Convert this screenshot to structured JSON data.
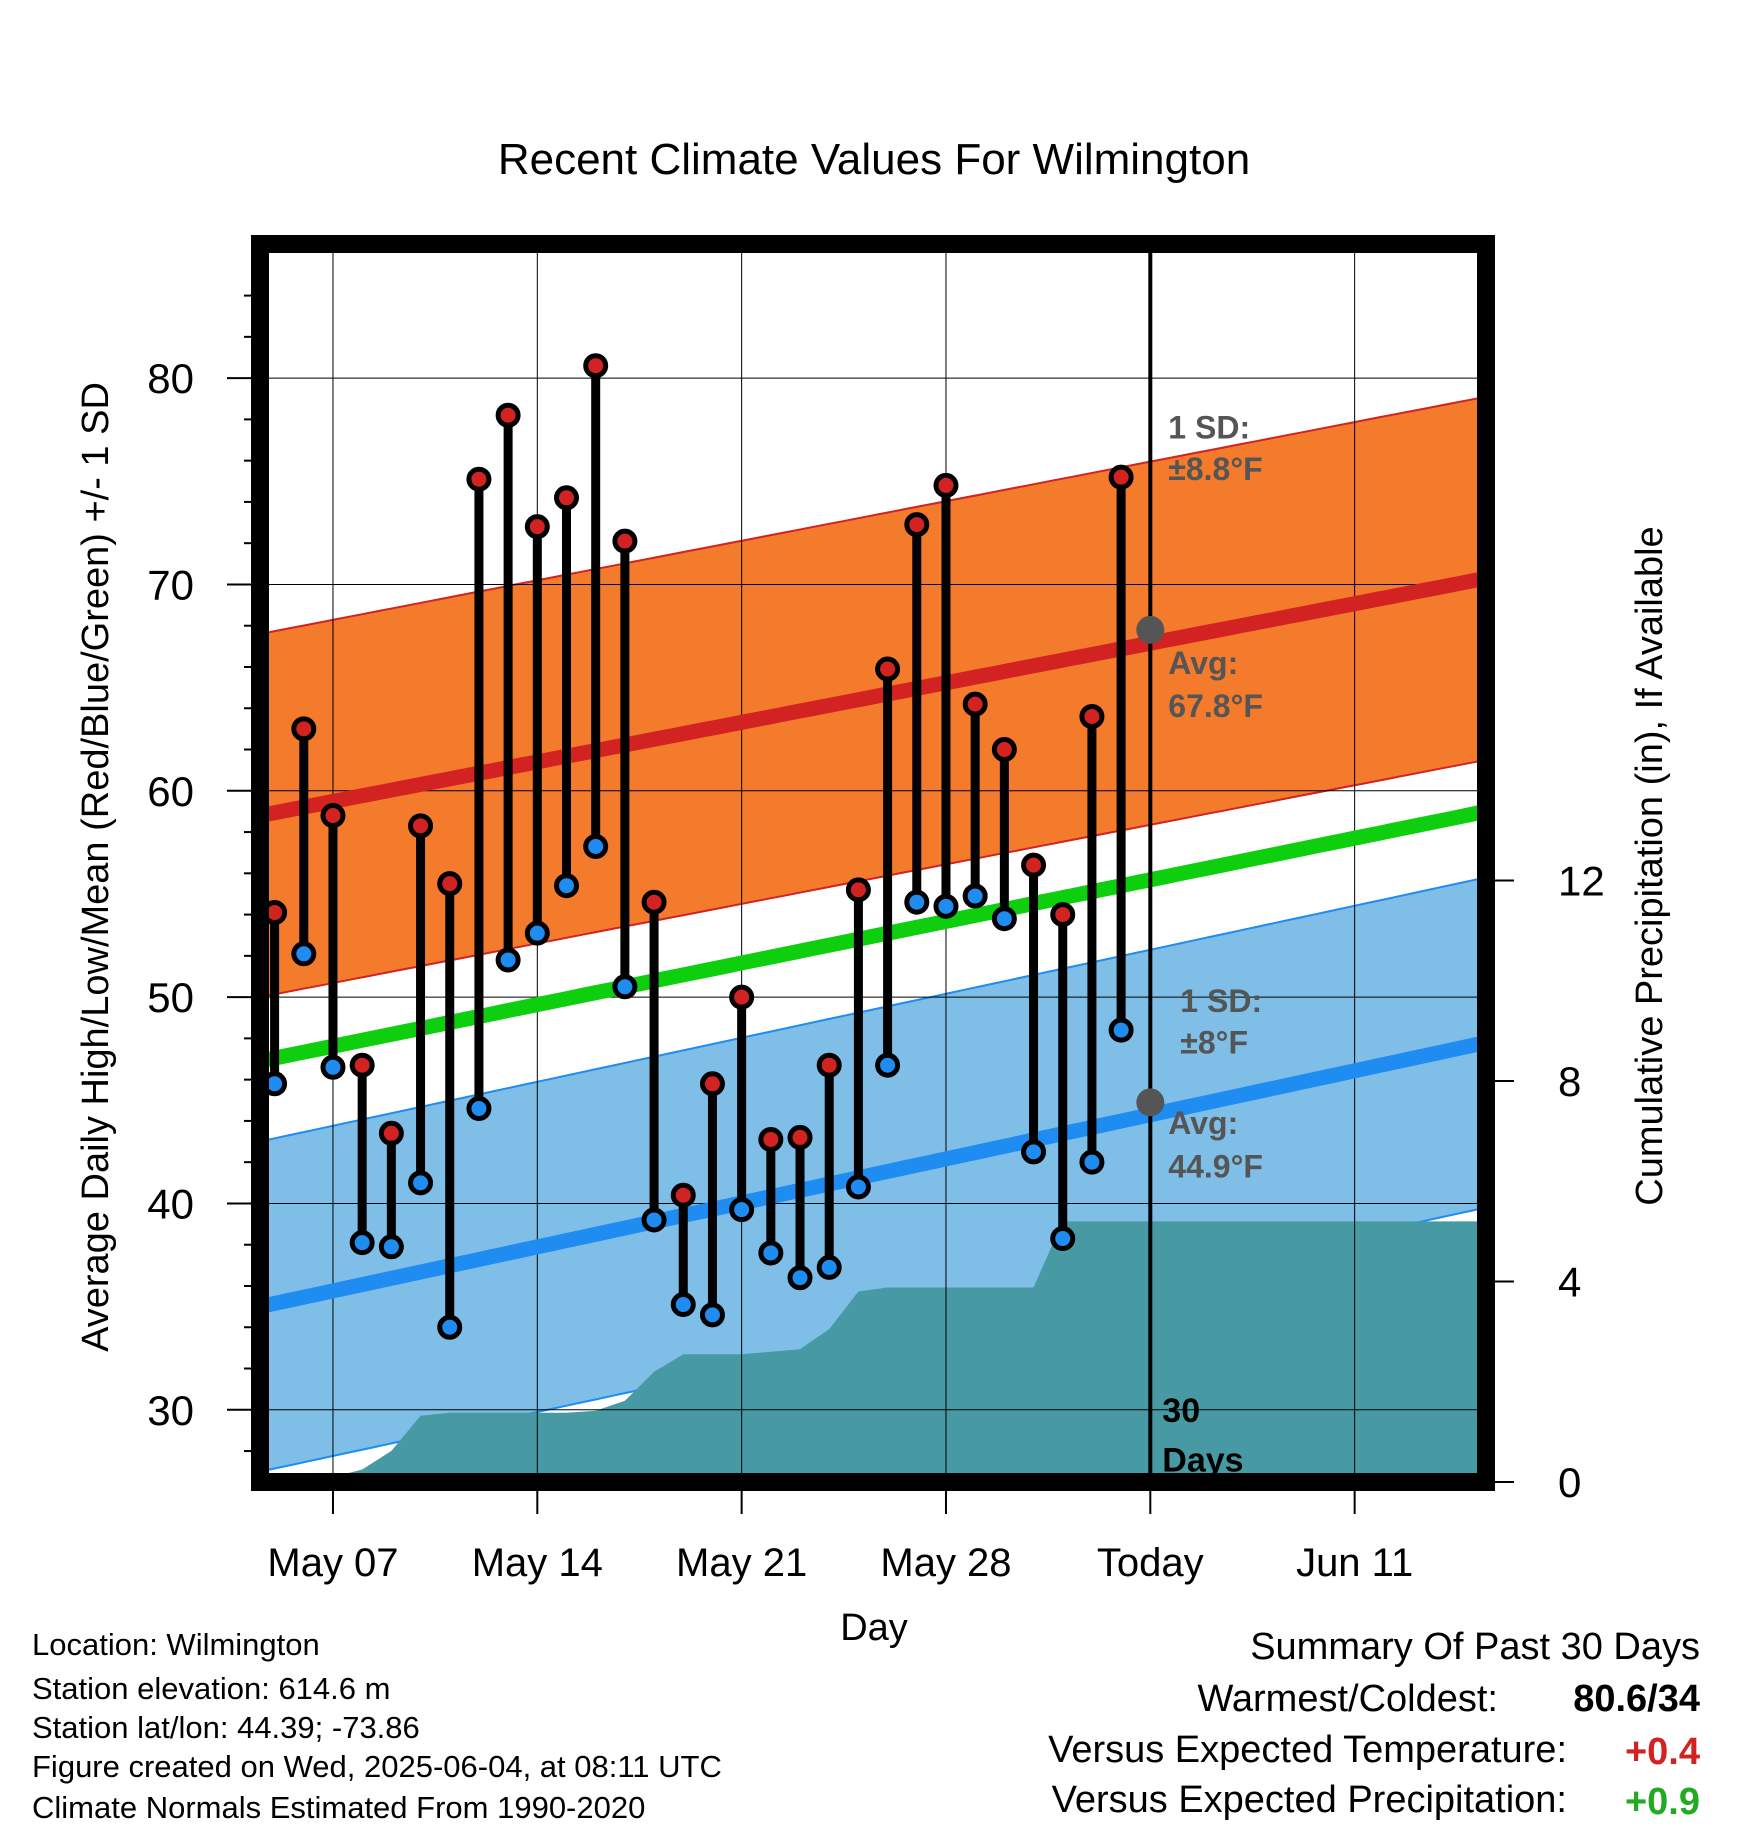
{
  "chart_data": {
    "type": "line",
    "title": "Recent Climate Values For Wilmington",
    "xlabel": "Day",
    "ylabel_left": "Average Daily High/Low/Mean (Red/Blue/Green) +/- 1 SD",
    "ylabel_right": "Cumulative Precipitation (in), If Available",
    "ylim_left": [
      26.5,
      86.5
    ],
    "yticks_left": [
      30,
      40,
      50,
      60,
      70,
      80
    ],
    "ylim_right": [
      0,
      24.7
    ],
    "yticks_right": [
      0,
      4,
      8,
      12
    ],
    "xlim": [
      0.5,
      42.5
    ],
    "xticks": [
      {
        "x": 3,
        "label": "May 07"
      },
      {
        "x": 10,
        "label": "May 14"
      },
      {
        "x": 17,
        "label": "May 21"
      },
      {
        "x": 24,
        "label": "May 28"
      },
      {
        "x": 31,
        "label": "Today"
      },
      {
        "x": 38,
        "label": "Jun 11"
      }
    ],
    "today_x": 31,
    "highs": [
      54.1,
      63.0,
      58.8,
      46.7,
      43.4,
      58.3,
      55.5,
      75.1,
      78.2,
      72.8,
      74.2,
      80.6,
      72.1,
      54.6,
      40.4,
      45.8,
      50.0,
      43.1,
      43.2,
      46.7,
      55.2,
      65.9,
      72.9,
      74.8,
      64.2,
      62.0,
      56.4,
      54.0,
      63.6,
      75.2
    ],
    "lows": [
      45.8,
      52.1,
      46.6,
      38.1,
      37.9,
      41.0,
      34.0,
      44.6,
      51.8,
      53.1,
      55.4,
      57.3,
      50.5,
      39.2,
      35.1,
      34.6,
      39.7,
      37.6,
      36.4,
      36.9,
      40.8,
      46.7,
      54.6,
      54.4,
      54.9,
      53.8,
      42.5,
      38.3,
      42.0,
      48.4
    ],
    "normal_high": {
      "start": 58.8,
      "end": 70.3
    },
    "normal_low": {
      "start": 35.0,
      "end": 47.8
    },
    "normal_mean": {
      "start": 46.9,
      "end": 59.0
    },
    "sd_high": 8.8,
    "sd_low": 8,
    "today_avg_high": 67.8,
    "today_avg_low": 44.9,
    "precip_cumulative": [
      0,
      0.02,
      0.1,
      0.25,
      0.62,
      1.32,
      1.38,
      1.38,
      1.38,
      1.38,
      1.38,
      1.42,
      1.62,
      2.2,
      2.55,
      2.55,
      2.55,
      2.6,
      2.65,
      3.05,
      3.8,
      3.88,
      3.88,
      3.88,
      3.88,
      3.88,
      3.88,
      5.2,
      5.2,
      5.2,
      5.2,
      5.2,
      5.2,
      5.2,
      5.2,
      5.2,
      5.2,
      5.2,
      5.2,
      5.2,
      5.2,
      5.2
    ],
    "annotations": {
      "sd_high_label": "1 SD:",
      "sd_high_value": "±8.8°F",
      "avg_high_label": "Avg:",
      "avg_high_value": "67.8°F",
      "sd_low_label": "1 SD:",
      "sd_low_value": "±8°F",
      "avg_low_label": "Avg:",
      "avg_low_value": "44.9°F",
      "days_num": "30",
      "days_word": "Days"
    },
    "colors": {
      "high_band": "#f47a2c",
      "high_line": "#d22322",
      "low_band": "#7fbee6",
      "low_line": "#1e8cf0",
      "mean_line": "#0dcf0d",
      "precip": "#479aa4",
      "high_dot": "#d22322",
      "low_dot": "#1e8cf0",
      "avg_dot": "#555555",
      "annotation_text": "#555555"
    },
    "grid": true
  },
  "footer": {
    "location": "Location: Wilmington",
    "elevation": "Station elevation: 614.6 m",
    "latlon": "Station lat/lon: 44.39; -73.86",
    "created": "Figure created on Wed, 2025-06-04, at 08:11 UTC",
    "normals": "Climate Normals Estimated From 1990-2020"
  },
  "summary": {
    "title": "Summary Of Past 30 Days",
    "warm_cold_label": "Warmest/Coldest:",
    "warm_cold_value": "80.6/34",
    "temp_label": "Versus Expected Temperature:",
    "temp_value": "+0.4",
    "temp_color": "#d22322",
    "precip_label": "Versus Expected Precipitation:",
    "precip_value": "+0.9",
    "precip_color": "#22aa22"
  }
}
